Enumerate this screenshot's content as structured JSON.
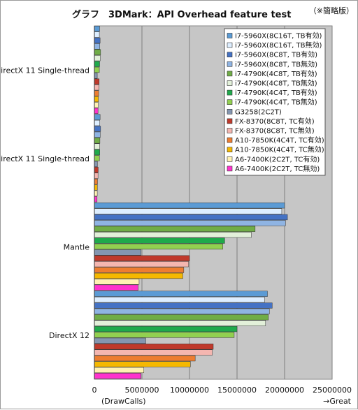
{
  "chart_data": {
    "type": "bar",
    "orientation": "horizontal",
    "title": "グラフ　3DMark：API Overhead feature test",
    "note": "（※簡略版）",
    "xlabel": "(DrawCalls)",
    "x_direction_label": "→Great",
    "xlim": [
      0,
      25000000
    ],
    "x_ticks": [
      0,
      5000000,
      10000000,
      15000000,
      20000000,
      25000000
    ],
    "x_tick_labels": [
      "0",
      "5000000",
      "10000000",
      "15000000",
      "20000000",
      "25000000"
    ],
    "grid": true,
    "legend_position": "top-right",
    "categories": [
      "DirectX 11 Single-thread",
      "DirectX 11 Single-thread",
      "Mantle",
      "DirectX 12"
    ],
    "series": [
      {
        "name": "i7-5960X(8C16T, TB有効)",
        "color": "#5b9bd5",
        "values": [
          550000,
          600000,
          20000000,
          18200000
        ]
      },
      {
        "name": "i7-5960X(8C16T, TB無効)",
        "color": "#ddeeff",
        "values": [
          520000,
          560000,
          19700000,
          17900000
        ]
      },
      {
        "name": "i7-5960X(8C8T, TB有効)",
        "color": "#4472c4",
        "values": [
          600000,
          650000,
          20300000,
          18700000
        ]
      },
      {
        "name": "i7-5960X(8C8T, TB無効)",
        "color": "#8fb4e3",
        "values": [
          570000,
          620000,
          20100000,
          18400000
        ]
      },
      {
        "name": "i7-4790K(4C8T, TB有効)",
        "color": "#70ad47",
        "values": [
          650000,
          580000,
          16900000,
          18300000
        ]
      },
      {
        "name": "i7-4790K(4C8T, TB無効)",
        "color": "#e2f0d9",
        "values": [
          620000,
          550000,
          16500000,
          18000000
        ]
      },
      {
        "name": "i7-4790K(4C4T, TB有効)",
        "color": "#1faa4b",
        "values": [
          550000,
          560000,
          13700000,
          15000000
        ]
      },
      {
        "name": "i7-4790K(4C4T, TB無効)",
        "color": "#92d050",
        "values": [
          520000,
          530000,
          13500000,
          14700000
        ]
      },
      {
        "name": "G3258(2C2T)",
        "color": "#8496b0",
        "values": [
          300000,
          320000,
          4900000,
          5400000
        ]
      },
      {
        "name": "FX-8370(8C8T, TC有効)",
        "color": "#c0392b",
        "values": [
          500000,
          400000,
          10000000,
          12500000
        ]
      },
      {
        "name": "FX-8370(8C8T, TC無効)",
        "color": "#f4b6b0",
        "values": [
          480000,
          380000,
          9900000,
          12400000
        ]
      },
      {
        "name": "A10-7850K(4C4T, TC有効)",
        "color": "#ed7d31",
        "values": [
          450000,
          330000,
          9400000,
          10600000
        ]
      },
      {
        "name": "A10-7850K(4C4T, TC無効)",
        "color": "#f5b800",
        "values": [
          420000,
          310000,
          9300000,
          10100000
        ]
      },
      {
        "name": "A6-7400K(2C2T, TC有効)",
        "color": "#fff2b3",
        "values": [
          400000,
          300000,
          4700000,
          5200000
        ]
      },
      {
        "name": "A6-7400K(2C2T, TC無効)",
        "color": "#ff33cc",
        "values": [
          380000,
          280000,
          4600000,
          4900000
        ]
      }
    ]
  },
  "colors": {
    "plot_background": "#c6c6c6",
    "gridline": "#7f7f7f",
    "bar_outline": "#333333"
  }
}
